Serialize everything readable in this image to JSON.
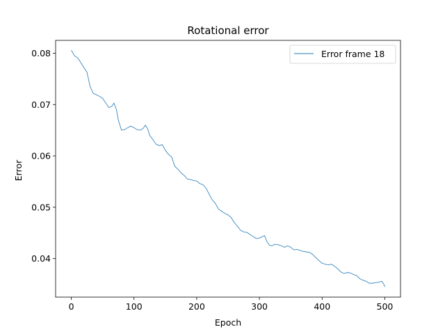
{
  "chart_data": {
    "type": "line",
    "title": "Rotational error",
    "xlabel": "Epoch",
    "ylabel": "Error",
    "xlim": [
      -25,
      525
    ],
    "ylim": [
      0.0325,
      0.0825
    ],
    "xticks": [
      0,
      100,
      200,
      300,
      400,
      500
    ],
    "yticks": [
      0.04,
      0.05,
      0.06,
      0.07,
      0.08
    ],
    "xtick_labels": [
      "0",
      "100",
      "200",
      "300",
      "400",
      "500"
    ],
    "ytick_labels": [
      "0.04",
      "0.05",
      "0.06",
      "0.07",
      "0.08"
    ],
    "grid": false,
    "legend_position": "top-right",
    "series": [
      {
        "name": "Error frame 18",
        "color": "#1f77b4",
        "points": [
          [
            0,
            0.0806
          ],
          [
            5,
            0.0795
          ],
          [
            10,
            0.0791
          ],
          [
            15,
            0.0782
          ],
          [
            20,
            0.0772
          ],
          [
            25,
            0.0763
          ],
          [
            30,
            0.0735
          ],
          [
            35,
            0.0722
          ],
          [
            40,
            0.0719
          ],
          [
            45,
            0.0716
          ],
          [
            50,
            0.0712
          ],
          [
            55,
            0.0703
          ],
          [
            60,
            0.0694
          ],
          [
            65,
            0.0697
          ],
          [
            68,
            0.0703
          ],
          [
            72,
            0.069
          ],
          [
            75,
            0.067
          ],
          [
            80,
            0.065
          ],
          [
            85,
            0.0651
          ],
          [
            90,
            0.0655
          ],
          [
            95,
            0.0658
          ],
          [
            100,
            0.0655
          ],
          [
            105,
            0.0651
          ],
          [
            110,
            0.065
          ],
          [
            115,
            0.0654
          ],
          [
            118,
            0.066
          ],
          [
            122,
            0.0652
          ],
          [
            125,
            0.064
          ],
          [
            130,
            0.0632
          ],
          [
            135,
            0.0623
          ],
          [
            140,
            0.062
          ],
          [
            145,
            0.0622
          ],
          [
            150,
            0.0611
          ],
          [
            155,
            0.0603
          ],
          [
            160,
            0.0598
          ],
          [
            165,
            0.058
          ],
          [
            170,
            0.0574
          ],
          [
            175,
            0.0567
          ],
          [
            180,
            0.0562
          ],
          [
            185,
            0.0555
          ],
          [
            190,
            0.0554
          ],
          [
            195,
            0.0552
          ],
          [
            200,
            0.0551
          ],
          [
            205,
            0.0546
          ],
          [
            210,
            0.0544
          ],
          [
            215,
            0.0537
          ],
          [
            220,
            0.0525
          ],
          [
            225,
            0.0514
          ],
          [
            230,
            0.0507
          ],
          [
            235,
            0.0496
          ],
          [
            240,
            0.0492
          ],
          [
            245,
            0.0488
          ],
          [
            250,
            0.0485
          ],
          [
            255,
            0.048
          ],
          [
            260,
            0.047
          ],
          [
            265,
            0.0463
          ],
          [
            270,
            0.0455
          ],
          [
            275,
            0.0452
          ],
          [
            280,
            0.0451
          ],
          [
            285,
            0.0447
          ],
          [
            290,
            0.0443
          ],
          [
            295,
            0.0439
          ],
          [
            300,
            0.044
          ],
          [
            305,
            0.0443
          ],
          [
            308,
            0.0445
          ],
          [
            312,
            0.0433
          ],
          [
            316,
            0.0426
          ],
          [
            320,
            0.0425
          ],
          [
            325,
            0.0428
          ],
          [
            330,
            0.0427
          ],
          [
            335,
            0.0425
          ],
          [
            340,
            0.0422
          ],
          [
            345,
            0.0425
          ],
          [
            350,
            0.0422
          ],
          [
            355,
            0.0417
          ],
          [
            360,
            0.0418
          ],
          [
            365,
            0.0416
          ],
          [
            370,
            0.0414
          ],
          [
            375,
            0.0413
          ],
          [
            380,
            0.0412
          ],
          [
            385,
            0.0408
          ],
          [
            390,
            0.0402
          ],
          [
            395,
            0.0396
          ],
          [
            400,
            0.0391
          ],
          [
            405,
            0.0389
          ],
          [
            410,
            0.0388
          ],
          [
            415,
            0.0389
          ],
          [
            420,
            0.0385
          ],
          [
            425,
            0.038
          ],
          [
            430,
            0.0374
          ],
          [
            435,
            0.0371
          ],
          [
            440,
            0.0373
          ],
          [
            445,
            0.0372
          ],
          [
            450,
            0.0369
          ],
          [
            455,
            0.0367
          ],
          [
            460,
            0.0361
          ],
          [
            465,
            0.0358
          ],
          [
            470,
            0.0356
          ],
          [
            475,
            0.0352
          ],
          [
            480,
            0.0352
          ],
          [
            485,
            0.0353
          ],
          [
            490,
            0.0354
          ],
          [
            495,
            0.0356
          ],
          [
            498,
            0.0351
          ],
          [
            500,
            0.0345
          ]
        ]
      }
    ]
  }
}
